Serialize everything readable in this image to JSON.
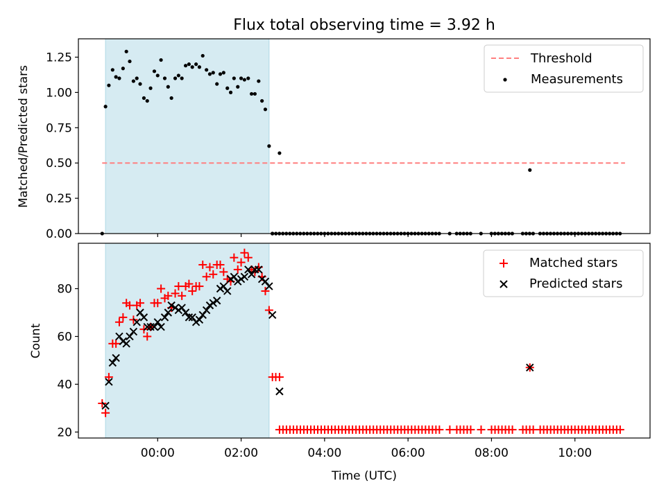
{
  "title": "Flux total observing time = 3.92 h",
  "colors": {
    "threshold": "#ff7f7f",
    "highlight": "#add8e6",
    "matched": "#ff0000",
    "predicted": "#000000",
    "measurement": "#000000"
  },
  "chart_data": [
    {
      "type": "scatter",
      "panel": "top",
      "ylabel": "Matched/Predicted stars",
      "ylim": [
        0,
        1.38
      ],
      "yticks": [
        "0.00",
        "0.25",
        "0.50",
        "0.75",
        "1.00",
        "1.25"
      ],
      "xlim": [
        -1.9,
        11.8
      ],
      "shaded_interval": [
        -1.25,
        2.67
      ],
      "legend_position": "upper right",
      "threshold": {
        "name": "Threshold",
        "value": 0.5,
        "x_range": [
          -1.33,
          11.2
        ]
      },
      "measurements": {
        "name": "Measurements",
        "x": [
          -1.33,
          -1.25,
          -1.17,
          -1.08,
          -1.0,
          -0.92,
          -0.83,
          -0.75,
          -0.67,
          -0.58,
          -0.5,
          -0.42,
          -0.33,
          -0.25,
          -0.17,
          -0.08,
          0.0,
          0.08,
          0.17,
          0.25,
          0.33,
          0.42,
          0.5,
          0.58,
          0.67,
          0.75,
          0.83,
          0.92,
          1.0,
          1.08,
          1.17,
          1.25,
          1.33,
          1.42,
          1.5,
          1.58,
          1.67,
          1.75,
          1.83,
          1.92,
          2.0,
          2.08,
          2.17,
          2.25,
          2.33,
          2.42,
          2.5,
          2.58,
          2.67,
          2.75,
          2.92,
          8.92
        ],
        "y": [
          0.0,
          0.9,
          1.05,
          1.16,
          1.11,
          1.1,
          1.17,
          1.29,
          1.22,
          1.08,
          1.1,
          1.06,
          0.96,
          0.94,
          1.03,
          1.15,
          1.12,
          1.23,
          1.1,
          1.04,
          0.96,
          1.1,
          1.12,
          1.1,
          1.19,
          1.2,
          1.18,
          1.2,
          1.18,
          1.26,
          1.16,
          1.13,
          1.14,
          1.06,
          1.13,
          1.14,
          1.03,
          1.0,
          1.1,
          1.04,
          1.1,
          1.09,
          1.1,
          0.99,
          0.99,
          1.08,
          0.94,
          0.88,
          0.62,
          0.0,
          0.57,
          0.45
        ],
        "zero_x_start": 2.75,
        "zero_x_end": 11.15,
        "zero_x_step": 0.0833,
        "zero_gaps": [
          [
            6.82,
            6.98
          ],
          [
            7.07,
            7.15
          ],
          [
            7.57,
            7.73
          ],
          [
            7.82,
            7.98
          ],
          [
            8.57,
            8.73
          ],
          [
            9.07,
            9.15
          ]
        ]
      }
    },
    {
      "type": "scatter",
      "panel": "bottom",
      "xlabel": "Time (UTC)",
      "ylabel": "Count",
      "ylim": [
        17.5,
        99
      ],
      "yticks": [
        "20",
        "40",
        "60",
        "80"
      ],
      "xlim": [
        -1.9,
        11.8
      ],
      "xticks": [
        {
          "value": 0,
          "label": "00:00"
        },
        {
          "value": 2,
          "label": "02:00"
        },
        {
          "value": 4,
          "label": "04:00"
        },
        {
          "value": 6,
          "label": "06:00"
        },
        {
          "value": 8,
          "label": "08:00"
        },
        {
          "value": 10,
          "label": "10:00"
        }
      ],
      "shaded_interval": [
        -1.25,
        2.67
      ],
      "legend_position": "upper right",
      "series": [
        {
          "name": "Matched stars",
          "marker": "plus",
          "x": [
            -1.33,
            -1.25,
            -1.17,
            -1.08,
            -1.0,
            -0.92,
            -0.83,
            -0.75,
            -0.67,
            -0.58,
            -0.5,
            -0.42,
            -0.33,
            -0.25,
            -0.17,
            -0.08,
            0.0,
            0.08,
            0.17,
            0.25,
            0.33,
            0.42,
            0.5,
            0.58,
            0.67,
            0.75,
            0.83,
            0.92,
            1.0,
            1.08,
            1.17,
            1.25,
            1.33,
            1.42,
            1.5,
            1.58,
            1.67,
            1.75,
            1.83,
            1.92,
            2.0,
            2.08,
            2.17,
            2.25,
            2.33,
            2.42,
            2.5,
            2.58,
            2.67,
            2.75,
            2.83,
            2.92,
            8.92
          ],
          "y": [
            32,
            28,
            43,
            57,
            57,
            66,
            68,
            74,
            73,
            67,
            73,
            74,
            63,
            60,
            64,
            74,
            74,
            80,
            76,
            77,
            72,
            78,
            81,
            77,
            81,
            82,
            79,
            81,
            81,
            90,
            85,
            89,
            86,
            90,
            90,
            87,
            84,
            83,
            93,
            88,
            91,
            95,
            93,
            88,
            87,
            89,
            85,
            79,
            71,
            43,
            43,
            43,
            47
          ],
          "flat_value": 21,
          "flat_x_start": 2.92,
          "flat_x_end": 11.15,
          "flat_x_step": 0.0833,
          "flat_gaps": [
            [
              6.82,
              6.98
            ],
            [
              7.07,
              7.15
            ],
            [
              7.57,
              7.73
            ],
            [
              7.82,
              7.98
            ],
            [
              8.57,
              8.73
            ],
            [
              9.07,
              9.15
            ]
          ]
        },
        {
          "name": "Predicted stars",
          "marker": "x",
          "x": [
            -1.25,
            -1.17,
            -1.08,
            -1.0,
            -0.92,
            -0.83,
            -0.75,
            -0.67,
            -0.58,
            -0.5,
            -0.42,
            -0.33,
            -0.25,
            -0.17,
            -0.08,
            0.0,
            0.08,
            0.17,
            0.25,
            0.33,
            0.42,
            0.5,
            0.58,
            0.67,
            0.75,
            0.83,
            0.92,
            1.0,
            1.08,
            1.17,
            1.25,
            1.33,
            1.42,
            1.5,
            1.58,
            1.67,
            1.75,
            1.83,
            1.92,
            2.0,
            2.08,
            2.17,
            2.25,
            2.33,
            2.42,
            2.5,
            2.58,
            2.67,
            2.75,
            2.92,
            8.92
          ],
          "y": [
            31,
            41,
            49,
            51,
            60,
            58,
            57,
            60,
            62,
            66,
            70,
            68,
            64,
            64,
            64,
            66,
            64,
            68,
            70,
            73,
            72,
            71,
            72,
            70,
            68,
            68,
            66,
            67,
            69,
            71,
            73,
            74,
            75,
            80,
            81,
            79,
            84,
            85,
            83,
            84,
            85,
            88,
            86,
            88,
            88,
            84,
            83,
            81,
            69,
            37,
            47
          ]
        }
      ]
    }
  ]
}
